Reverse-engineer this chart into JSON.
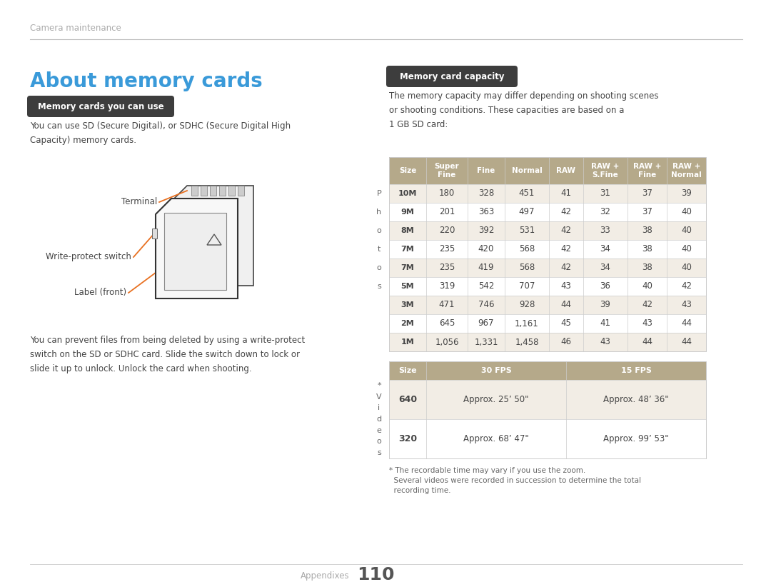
{
  "bg_color": "#ffffff",
  "header_text": "Camera maintenance",
  "title": "About memory cards",
  "title_color": "#3a9ad9",
  "section1_badge": "  Memory cards you can use  ",
  "section1_badge_bg": "#3d3d3d",
  "section1_badge_color": "#ffffff",
  "section1_text1": "You can use SD (Secure Digital), or SDHC (Secure Digital High\nCapacity) memory cards.",
  "section1_text2": "You can prevent files from being deleted by using a write-protect\nswitch on the SD or SDHC card. Slide the switch down to lock or\nslide it up to unlock. Unlock the card when shooting.",
  "sd_labels": [
    "Terminal",
    "Write-protect switch",
    "Label (front)"
  ],
  "section2_badge": "  Memory card capacity  ",
  "section2_badge_bg": "#3d3d3d",
  "section2_badge_color": "#ffffff",
  "section2_text": "The memory capacity may differ depending on shooting scenes\nor shooting conditions. These capacities are based on a\n1 GB SD card:",
  "table_header_bg": "#b5a98a",
  "table_header_color": "#ffffff",
  "table_alt_bg": "#f2ede5",
  "table_white_bg": "#ffffff",
  "table_border": "#cccccc",
  "table_headers": [
    "Size",
    "Super\nFine",
    "Fine",
    "Normal",
    "RAW",
    "RAW +\nS.Fine",
    "RAW +\nFine",
    "RAW +\nNormal"
  ],
  "photo_rows": [
    [
      "10M",
      "180",
      "328",
      "451",
      "41",
      "31",
      "37",
      "39"
    ],
    [
      "9M",
      "201",
      "363",
      "497",
      "42",
      "32",
      "37",
      "40"
    ],
    [
      "8M",
      "220",
      "392",
      "531",
      "42",
      "33",
      "38",
      "40"
    ],
    [
      "7M",
      "235",
      "420",
      "568",
      "42",
      "34",
      "38",
      "40"
    ],
    [
      "7M",
      "235",
      "419",
      "568",
      "42",
      "34",
      "38",
      "40"
    ],
    [
      "5M",
      "319",
      "542",
      "707",
      "43",
      "36",
      "40",
      "42"
    ],
    [
      "3M",
      "471",
      "746",
      "928",
      "44",
      "39",
      "42",
      "43"
    ],
    [
      "2M",
      "645",
      "967",
      "1,161",
      "45",
      "41",
      "43",
      "44"
    ],
    [
      "1M",
      "1,056",
      "1,331",
      "1,458",
      "46",
      "43",
      "44",
      "44"
    ]
  ],
  "photo_size_icons": [
    "10M",
    "9M",
    "8M",
    "7M",
    "7M",
    "5M",
    "3M",
    "2M",
    "1M"
  ],
  "video_table_headers": [
    "Size",
    "30 FPS",
    "15 FPS"
  ],
  "video_rows": [
    [
      "640",
      "Approx. 25’ 50\"",
      "Approx. 48’ 36\""
    ],
    [
      "320",
      "Approx. 68’ 47\"",
      "Approx. 99’ 53\""
    ]
  ],
  "left_label_photos": [
    "P",
    "h",
    "o",
    "t",
    "o",
    "s"
  ],
  "left_label_video": [
    "*",
    "V",
    "i",
    "d",
    "e",
    "o",
    "s"
  ],
  "footnote_line1": "* The recordable time may vary if you use the zoom.",
  "footnote_line2": "  Several videos were recorded in succession to determine the total",
  "footnote_line3": "  recording time.",
  "page_label": "Appendixes",
  "page_number": "110",
  "orange": "#e87020",
  "dark_text": "#444444",
  "gray_text": "#888888",
  "light_gray": "#aaaaaa"
}
